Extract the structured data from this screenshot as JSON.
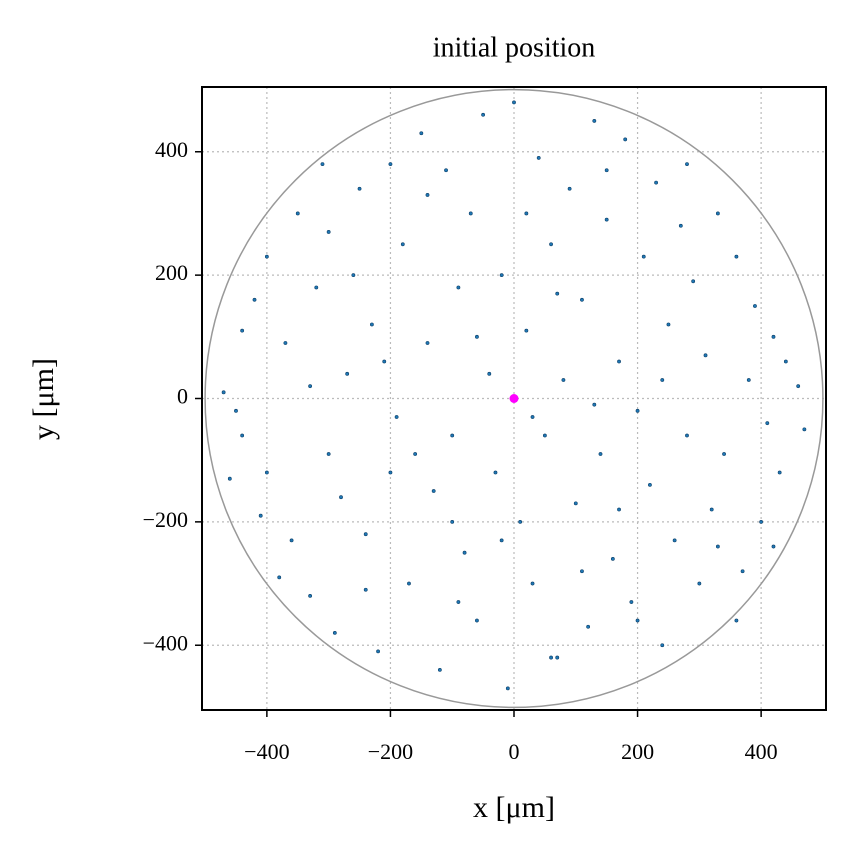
{
  "chart_data": {
    "type": "scatter",
    "title": "initial position",
    "x_label": "x [μm]",
    "y_label": "y [μm]",
    "xlim": [
      -505,
      505
    ],
    "ylim": [
      -505,
      505
    ],
    "xticks": [
      {
        "value": -400,
        "label": "−400"
      },
      {
        "value": -200,
        "label": "−200"
      },
      0,
      200,
      400
    ],
    "yticks": [
      {
        "value": -400,
        "label": "−400"
      },
      {
        "value": -200,
        "label": "−200"
      },
      0,
      200,
      400
    ],
    "grid": true,
    "boundary": {
      "radius": 500,
      "color": "#999999"
    },
    "series": [
      {
        "color": "#1f77b4",
        "x": [
          -470,
          -460,
          -440,
          -420,
          -400,
          -380,
          -370,
          -350,
          -330,
          -320,
          -300,
          -300,
          -290,
          -270,
          -250,
          -240,
          -230,
          -220,
          -200,
          -190,
          -180,
          -170,
          -150,
          -140,
          -130,
          -120,
          -110,
          -100,
          -90,
          -80,
          -70,
          -60,
          -50,
          -40,
          -30,
          -20,
          -10,
          0,
          10,
          20,
          30,
          40,
          50,
          60,
          70,
          80,
          90,
          100,
          110,
          120,
          130,
          140,
          150,
          160,
          170,
          180,
          190,
          200,
          210,
          220,
          230,
          240,
          250,
          260,
          270,
          280,
          290,
          300,
          310,
          320,
          330,
          340,
          360,
          370,
          380,
          390,
          400,
          410,
          420,
          430,
          440,
          460,
          470,
          -440,
          -450,
          -410,
          -360,
          -330,
          -280,
          -260,
          -210,
          -160,
          -140,
          -90,
          -60,
          -20,
          30,
          70,
          110,
          150,
          200,
          240,
          280,
          330,
          360,
          -240,
          -310,
          -200,
          130,
          -400,
          420,
          20,
          -100,
          60,
          170
        ],
        "y": [
          10,
          -130,
          -60,
          160,
          230,
          -290,
          90,
          300,
          -320,
          180,
          270,
          -90,
          -380,
          40,
          340,
          -220,
          120,
          -410,
          380,
          -30,
          250,
          -300,
          430,
          90,
          -150,
          -440,
          370,
          -60,
          180,
          -250,
          300,
          -360,
          460,
          40,
          -120,
          200,
          -470,
          480,
          -200,
          110,
          -300,
          390,
          -60,
          250,
          -420,
          30,
          340,
          -170,
          160,
          -370,
          450,
          -90,
          290,
          -260,
          60,
          420,
          -330,
          -20,
          230,
          -140,
          350,
          -400,
          120,
          -230,
          280,
          -60,
          190,
          -300,
          70,
          -180,
          300,
          -90,
          230,
          -280,
          30,
          150,
          -200,
          -40,
          100,
          -120,
          60,
          20,
          -50,
          110,
          -20,
          -190,
          -230,
          20,
          -160,
          200,
          60,
          -90,
          330,
          -330,
          100,
          -230,
          -30,
          170,
          -280,
          370,
          -360,
          30,
          380,
          -240,
          -360,
          -310,
          380,
          -120,
          -10,
          -120,
          -240,
          300,
          -200,
          -420,
          -180
        ]
      },
      {
        "color": "#ff00ff",
        "x": [
          0
        ],
        "y": [
          0
        ]
      }
    ]
  }
}
